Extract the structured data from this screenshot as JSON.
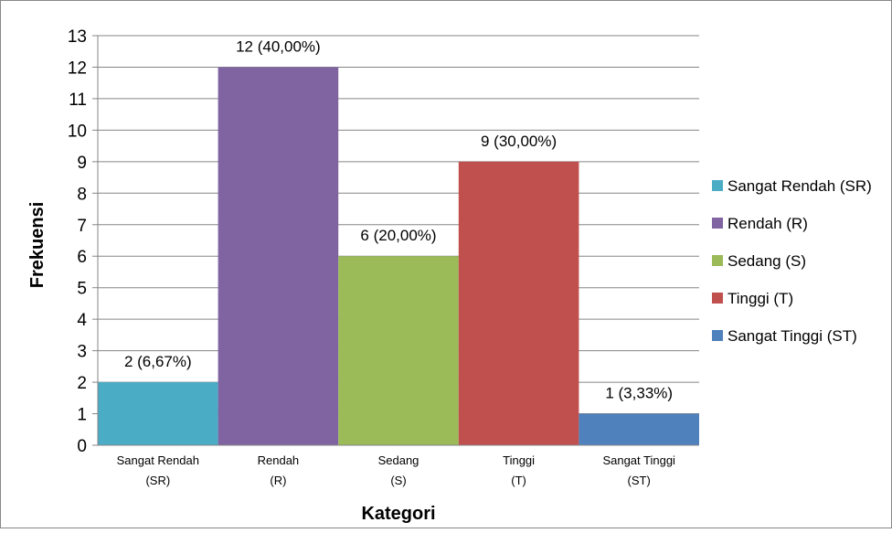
{
  "chart_data": {
    "type": "bar",
    "xlabel": "Kategori",
    "ylabel": "Frekuensi",
    "ylim": [
      0,
      13
    ],
    "yticks": [
      0,
      1,
      2,
      3,
      4,
      5,
      6,
      7,
      8,
      9,
      10,
      11,
      12,
      13
    ],
    "grid": true,
    "legend_position": "right",
    "categories": [
      {
        "line1": "Sangat Rendah",
        "line2": "(SR)"
      },
      {
        "line1": "Rendah",
        "line2": "(R)"
      },
      {
        "line1": "Sedang",
        "line2": "(S)"
      },
      {
        "line1": "Tinggi",
        "line2": "(T)"
      },
      {
        "line1": "Sangat Tinggi",
        "line2": "(ST)"
      }
    ],
    "series": [
      {
        "name": "Sangat Rendah (SR)",
        "value": 2,
        "label": "2 (6,67%)",
        "color": "#4BACC6"
      },
      {
        "name": "Rendah (R)",
        "value": 12,
        "label": "12 (40,00%)",
        "color": "#8064A2"
      },
      {
        "name": "Sedang (S)",
        "value": 6,
        "label": "6 (20,00%)",
        "color": "#9BBB59"
      },
      {
        "name": "Tinggi (T)",
        "value": 9,
        "label": "9 (30,00%)",
        "color": "#C0504D"
      },
      {
        "name": "Sangat Tinggi (ST)",
        "value": 1,
        "label": "1 (3,33%)",
        "color": "#4F81BD"
      }
    ]
  }
}
